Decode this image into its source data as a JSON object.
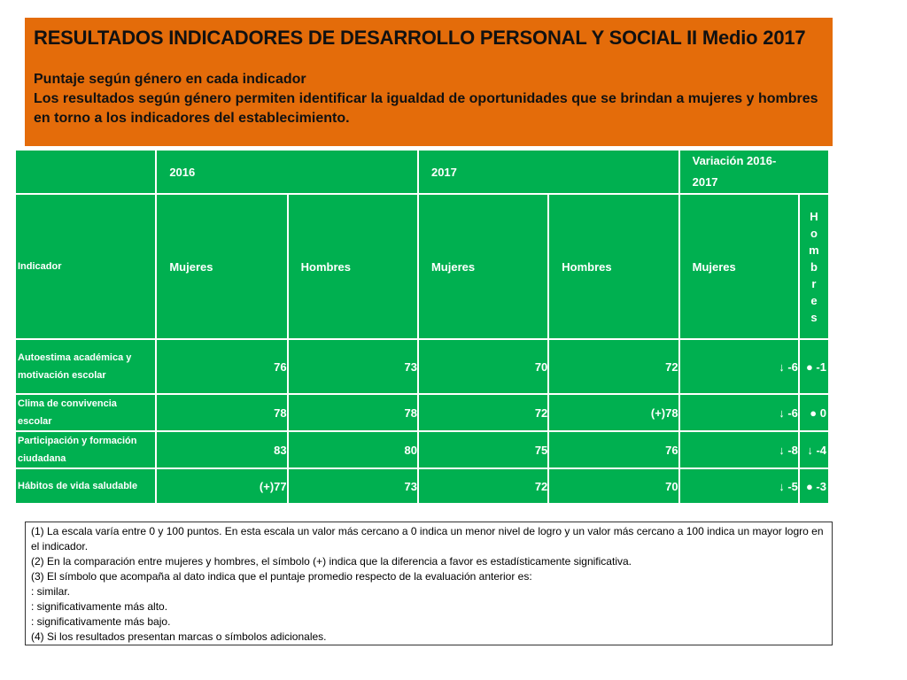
{
  "header": {
    "title": "RESULTADOS INDICADORES DE DESARROLLO PERSONAL Y SOCIAL II Medio 2017",
    "subtitle": "Puntaje según género en cada indicador",
    "description": "Los resultados según género permiten identificar la igualdad de oportunidades que se brindan a mujeres y hombres en torno a los indicadores del establecimiento."
  },
  "table": {
    "year_headers": [
      "2016",
      "2017"
    ],
    "variation_header_line1": "Variación 2016-",
    "variation_header_line2": "2017",
    "indicator_label": "Indicador",
    "sub_headers": [
      "Mujeres",
      "Hombres",
      "Mujeres",
      "Hombres",
      "Mujeres"
    ],
    "vertical_header_letters": [
      "H",
      "o",
      "m",
      "b",
      "r",
      "e",
      "s"
    ],
    "rows": [
      {
        "indicator": "Autoestima académica y motivación escolar",
        "values": [
          "76",
          "73",
          "70",
          "72",
          "↓ -6",
          "● -1"
        ]
      },
      {
        "indicator": "Clima de convivencia escolar",
        "values": [
          "78",
          "78",
          "72",
          "(+)78",
          "↓ -6",
          "● 0"
        ]
      },
      {
        "indicator": "Participación y formación ciudadana",
        "values": [
          "83",
          "80",
          "75",
          "76",
          "↓ -8",
          "↓ -4"
        ]
      },
      {
        "indicator": "Hábitos de vida saludable",
        "values": [
          "(+)77",
          "73",
          "72",
          "70",
          "↓ -5",
          "● -3"
        ]
      }
    ]
  },
  "notes": [
    "(1) La escala varía entre 0 y 100 puntos. En esta escala un valor más cercano a 0 indica un menor nivel de logro y un valor más cercano a 100 indica un mayor logro en el indicador.",
    "(2) En la comparación entre mujeres y hombres, el símbolo (+) indica que la diferencia a favor es estadísticamente significativa.",
    "(3) El símbolo que acompaña al dato indica que el puntaje promedio respecto de la evaluación anterior es:",
    ": similar.",
    ": significativamente más alto.",
    ": significativamente más bajo.",
    "(4) Si los resultados presentan marcas o símbolos adicionales."
  ],
  "colors": {
    "header_background": "#e46c0a",
    "table_cell_background": "#00b050",
    "table_text": "#ffffff"
  }
}
